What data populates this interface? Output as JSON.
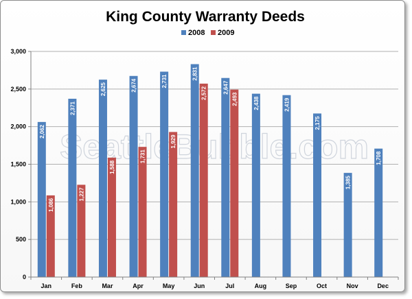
{
  "watermark": "SeattleBubble.com",
  "chart_data": {
    "type": "bar",
    "title": "King County Warranty Deeds",
    "xlabel": "",
    "ylabel": "",
    "categories": [
      "Jan",
      "Feb",
      "Mar",
      "Apr",
      "May",
      "Jun",
      "Jul",
      "Aug",
      "Sep",
      "Oct",
      "Nov",
      "Dec"
    ],
    "series": [
      {
        "name": "2008",
        "color": "#4f81bd",
        "values": [
          2062,
          2371,
          2625,
          2674,
          2731,
          2831,
          2647,
          2438,
          2419,
          2175,
          1385,
          1708
        ],
        "labels": [
          "2,062",
          "2,371",
          "2,625",
          "2,674",
          "2,731",
          "2,831",
          "2,647",
          "2,438",
          "2,419",
          "2,175",
          "1,385",
          "1,708"
        ]
      },
      {
        "name": "2009",
        "color": "#c0504d",
        "values": [
          1086,
          1227,
          1588,
          1731,
          1929,
          2572,
          2493,
          null,
          null,
          null,
          null,
          null
        ],
        "labels": [
          "1,086",
          "1,227",
          "1,588",
          "1,731",
          "1,929",
          "2,572",
          "2,493",
          null,
          null,
          null,
          null,
          null
        ]
      }
    ],
    "ylim": [
      0,
      3000
    ],
    "yticks": [
      0,
      500,
      1000,
      1500,
      2000,
      2500,
      3000
    ],
    "ytick_labels": [
      "0",
      "500",
      "1,000",
      "1,500",
      "2,000",
      "2,500",
      "3,000"
    ],
    "grid": true,
    "legend": "top-center"
  }
}
